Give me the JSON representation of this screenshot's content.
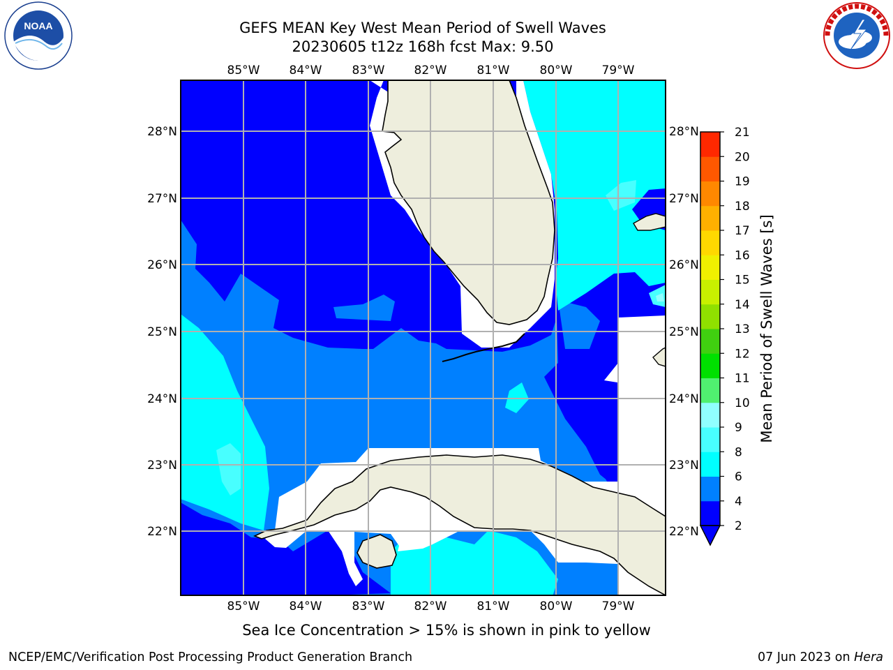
{
  "header": {
    "title_line1": "GEFS MEAN Key West Mean Period of Swell Waves",
    "title_line2": "20230605 t12z 168h fcst   Max: 9.50"
  },
  "logos": {
    "left": "noaa-logo",
    "right": "national-weather-service-logo",
    "left_text": "NOAA",
    "left_ring_text": "NATIONAL OCEANIC AND ATMOSPHERIC ADMINISTRATION · U.S. DEPARTMENT OF COMMERCE",
    "right_ring_text": "NATIONAL WEATHER SERVICE"
  },
  "map": {
    "lon_labels": [
      "85°W",
      "84°W",
      "83°W",
      "82°W",
      "81°W",
      "80°W",
      "79°W"
    ],
    "lat_labels": [
      "28°N",
      "27°N",
      "26°N",
      "25°N",
      "24°N",
      "23°N",
      "22°N"
    ],
    "colors": {
      "c2": "#0000ff",
      "c4": "#0080ff",
      "c6": "#00ffff",
      "c8": "#48ffff",
      "c9": "#90ffff",
      "land": "#eeeedd",
      "nodata": "#ffffff"
    }
  },
  "colorbar": {
    "label": "Mean Period of Swell Waves [s]",
    "ticks": [
      "2",
      "4",
      "6",
      "8",
      "9",
      "10",
      "11",
      "12",
      "13",
      "14",
      "15",
      "16",
      "17",
      "18",
      "19",
      "20",
      "21"
    ],
    "colors": [
      "#0000ff",
      "#0080ff",
      "#00ffff",
      "#48ffff",
      "#90ffff",
      "#50f070",
      "#00e000",
      "#40d010",
      "#90e000",
      "#c8f000",
      "#f0f000",
      "#ffd800",
      "#ffb000",
      "#ff8800",
      "#ff5800",
      "#ff2800",
      "#ff0000"
    ],
    "extend_color": "#0000ff"
  },
  "notes": {
    "ice": "Sea Ice Concentration > 15% is shown in pink to yellow",
    "footer_left": "NCEP/EMC/Verification Post Processing Product Generation Branch",
    "footer_date": "07 Jun 2023 on ",
    "footer_host": "Hera"
  }
}
